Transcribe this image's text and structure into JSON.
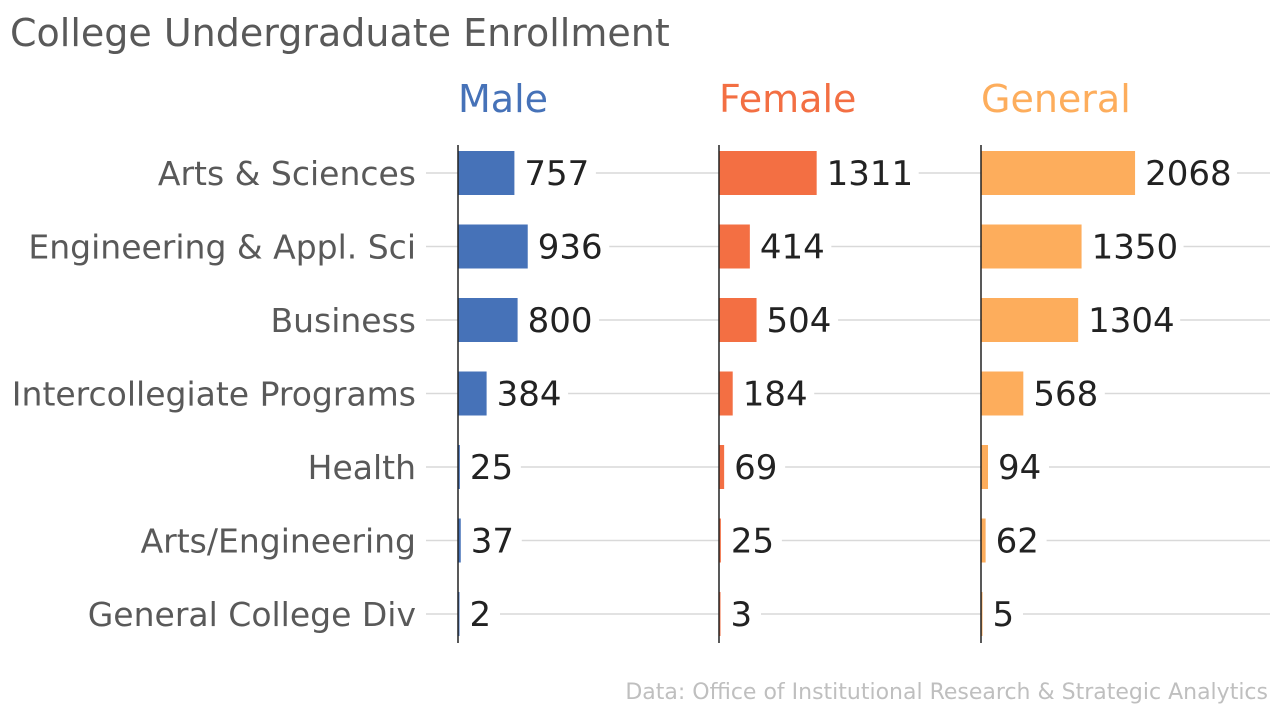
{
  "chart_data": {
    "type": "bar",
    "orientation": "horizontal",
    "layout": "small-multiples",
    "title": "College Undergraduate Enrollment",
    "source": "Data: Office of Institutional Research & Strategic Analytics",
    "categories": [
      "Arts & Sciences",
      "Engineering & Appl. Sci",
      "Business",
      "Intercollegiate Programs",
      "Health",
      "Arts/Engineering",
      "General College Div"
    ],
    "xlim": [
      0,
      2650
    ],
    "grid": true,
    "legend": "none",
    "series": [
      {
        "name": "Male",
        "color": "#4672b8",
        "values": [
          757,
          936,
          800,
          384,
          25,
          37,
          2
        ]
      },
      {
        "name": "Female",
        "color": "#f36f43",
        "values": [
          1311,
          414,
          504,
          184,
          69,
          25,
          3
        ]
      },
      {
        "name": "General",
        "color": "#fdad5c",
        "values": [
          2068,
          1350,
          1304,
          568,
          94,
          62,
          5
        ]
      }
    ]
  }
}
